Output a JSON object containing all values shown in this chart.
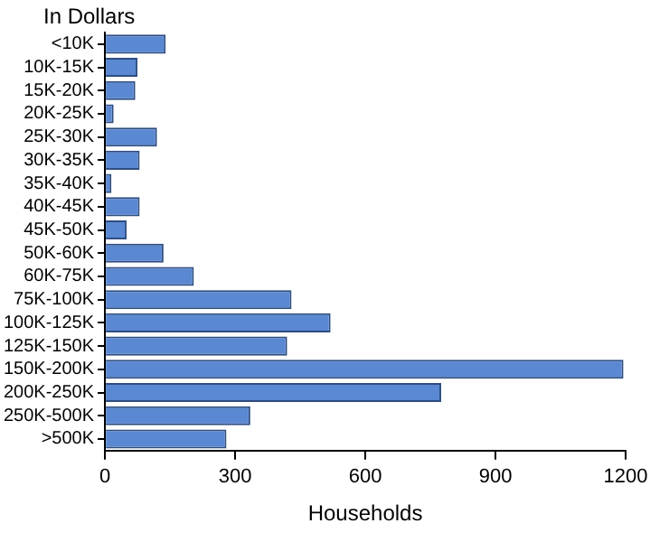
{
  "chart_data": {
    "type": "bar",
    "orientation": "horizontal",
    "title": "In Dollars",
    "xlabel": "Households",
    "categories": [
      "<10K",
      "10K-15K",
      "15K-20K",
      "20K-25K",
      "25K-30K",
      "30K-35K",
      "35K-40K",
      "40K-45K",
      "45K-50K",
      "50K-60K",
      "60K-75K",
      "75K-100K",
      "100K-125K",
      "125K-150K",
      "150K-200K",
      "200K-250K",
      "250K-500K",
      ">500K"
    ],
    "values": [
      140,
      75,
      70,
      20,
      120,
      80,
      15,
      80,
      50,
      135,
      205,
      430,
      520,
      420,
      1195,
      775,
      335,
      280
    ],
    "color": "#5a88d2",
    "xlim": [
      0,
      1200
    ],
    "xticks": [
      0,
      300,
      600,
      900,
      1200
    ],
    "grid": false,
    "legend": false
  }
}
